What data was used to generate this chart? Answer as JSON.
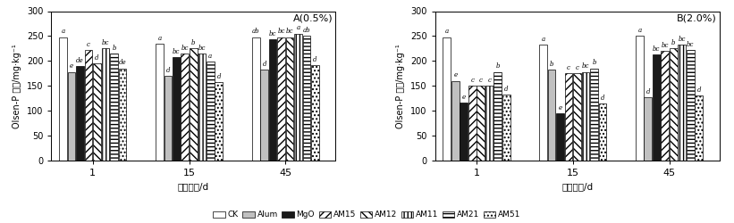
{
  "title_A": "A(0.5%)",
  "title_B": "B(2.0%)",
  "xlabel": "培养时间/d",
  "ylabel": "Olsen-P 含量/mg·kg⁻¹",
  "ylim": [
    0,
    300
  ],
  "yticks": [
    0,
    50,
    100,
    150,
    200,
    250,
    300
  ],
  "groups": [
    "1",
    "15",
    "45"
  ],
  "series": [
    "CK",
    "Alum",
    "MgO",
    "AM15",
    "AM12",
    "AM11",
    "AM21",
    "AM51"
  ],
  "data_A": [
    [
      248,
      178,
      190,
      222,
      195,
      225,
      215,
      185
    ],
    [
      235,
      170,
      207,
      215,
      226,
      215,
      198,
      158
    ],
    [
      248,
      183,
      243,
      248,
      248,
      255,
      250,
      192
    ]
  ],
  "data_B": [
    [
      248,
      160,
      116,
      150,
      150,
      150,
      178,
      132
    ],
    [
      232,
      182,
      95,
      175,
      175,
      178,
      185,
      115
    ],
    [
      250,
      127,
      213,
      220,
      225,
      232,
      222,
      130
    ]
  ],
  "labels_A": [
    [
      "a",
      "e",
      "de",
      "c",
      "d",
      "bc",
      "b",
      "de"
    ],
    [
      "a",
      "d",
      "bc",
      "bc",
      "b",
      "bc",
      "a",
      "d"
    ],
    [
      "ab",
      "d",
      "bc",
      "bc",
      "bc",
      "a",
      "ab",
      "d"
    ]
  ],
  "labels_B": [
    [
      "a",
      "e",
      "e",
      "c",
      "c",
      "c",
      "b",
      "d"
    ],
    [
      "a",
      "b",
      "e",
      "c",
      "c",
      "bc",
      "b",
      "d"
    ],
    [
      "a",
      "d",
      "bc",
      "bc",
      "b",
      "bc",
      "bc",
      "d"
    ]
  ],
  "colors": [
    "white",
    "#c0c0c0",
    "#1a1a1a",
    "white",
    "white",
    "white",
    "white",
    "white"
  ],
  "hatches": [
    "",
    "",
    "",
    "////",
    "\\\\\\\\",
    "||||",
    "----",
    "...."
  ],
  "bar_width": 0.088,
  "group_centers": [
    0.38,
    1.38,
    2.38
  ],
  "xlim": [
    -0.05,
    2.9
  ],
  "legend_labels": [
    "CK",
    "Alum",
    "MgO",
    "AM15",
    "AM12",
    "AM11",
    "AM21",
    "AM51"
  ]
}
